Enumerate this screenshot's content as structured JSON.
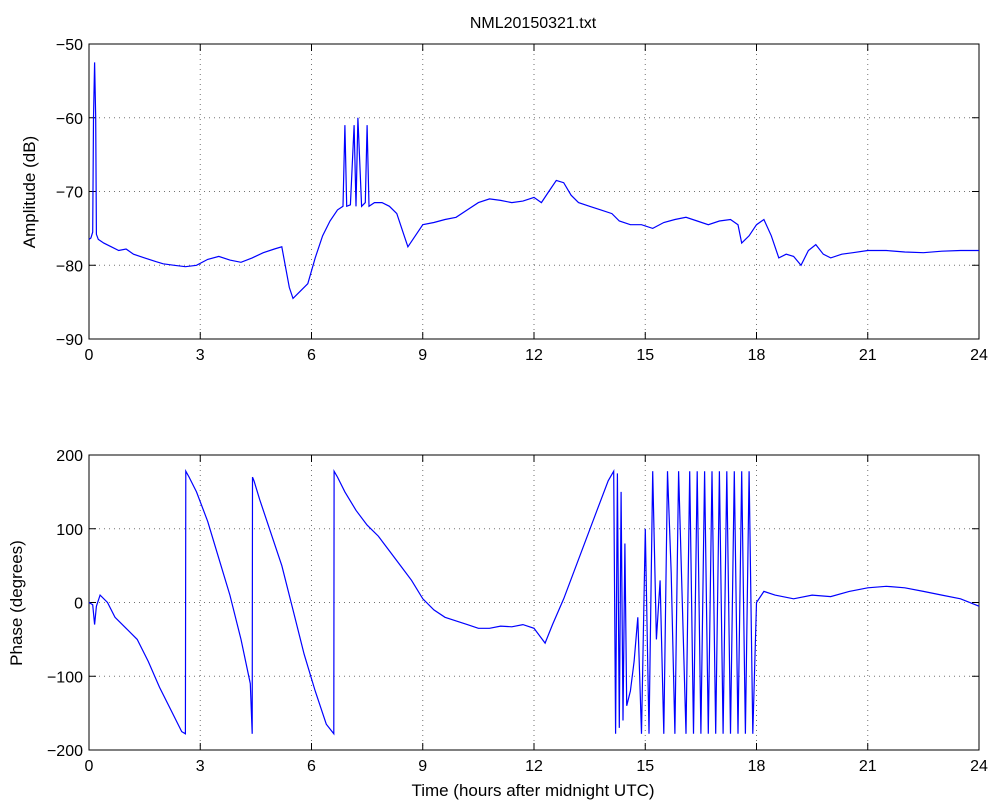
{
  "figure_title": "NML20150321.txt",
  "chart_data": [
    {
      "type": "line",
      "name": "amplitude",
      "xlabel": "",
      "ylabel": "Amplitude (dB)",
      "xlim": [
        0,
        24
      ],
      "ylim": [
        -90,
        -50
      ],
      "xticks": [
        0,
        3,
        6,
        9,
        12,
        15,
        18,
        21,
        24
      ],
      "yticks": [
        -90,
        -80,
        -70,
        -60,
        -50
      ],
      "xtick_labels": [
        "0",
        "3",
        "6",
        "9",
        "12",
        "15",
        "18",
        "21",
        "24"
      ],
      "ytick_labels": [
        "−90",
        "−80",
        "−70",
        "−60",
        "−50"
      ],
      "grid": true,
      "line_color": "#0000ff",
      "x": [
        0,
        0.05,
        0.1,
        0.12,
        0.15,
        0.18,
        0.2,
        0.25,
        0.4,
        0.6,
        0.8,
        1.0,
        1.2,
        1.5,
        1.8,
        2.0,
        2.3,
        2.6,
        2.9,
        3.2,
        3.5,
        3.8,
        4.1,
        4.4,
        4.7,
        5.0,
        5.2,
        5.4,
        5.5,
        5.7,
        5.9,
        6.1,
        6.3,
        6.5,
        6.7,
        6.85,
        6.9,
        6.95,
        7.05,
        7.15,
        7.2,
        7.25,
        7.35,
        7.45,
        7.5,
        7.55,
        7.7,
        7.9,
        8.1,
        8.3,
        8.5,
        8.6,
        8.8,
        9.0,
        9.3,
        9.6,
        9.9,
        10.2,
        10.5,
        10.8,
        11.1,
        11.4,
        11.7,
        12.0,
        12.2,
        12.4,
        12.6,
        12.8,
        13.0,
        13.2,
        13.5,
        13.8,
        14.1,
        14.3,
        14.6,
        14.9,
        15.2,
        15.5,
        15.8,
        16.1,
        16.4,
        16.7,
        17.0,
        17.3,
        17.5,
        17.6,
        17.8,
        18.0,
        18.2,
        18.4,
        18.6,
        18.8,
        19.0,
        19.2,
        19.4,
        19.6,
        19.8,
        20.0,
        20.3,
        20.6,
        21.0,
        21.5,
        22.0,
        22.5,
        23.0,
        23.5,
        24.0
      ],
      "y": [
        -76.5,
        -76.3,
        -75.5,
        -60,
        -52.5,
        -60,
        -75.8,
        -76.5,
        -77,
        -77.5,
        -78,
        -77.8,
        -78.5,
        -79,
        -79.5,
        -79.8,
        -80,
        -80.2,
        -80,
        -79.2,
        -78.8,
        -79.3,
        -79.6,
        -79,
        -78.3,
        -77.8,
        -77.5,
        -83,
        -84.5,
        -83.5,
        -82.5,
        -79,
        -76,
        -74,
        -72.5,
        -72,
        -61,
        -72,
        -71.8,
        -61,
        -72,
        -60,
        -72,
        -71.5,
        -61,
        -72,
        -71.5,
        -71.5,
        -72,
        -73,
        -76,
        -77.5,
        -76,
        -74.5,
        -74.2,
        -73.8,
        -73.5,
        -72.5,
        -71.5,
        -71,
        -71.2,
        -71.5,
        -71.3,
        -70.8,
        -71.5,
        -70,
        -68.5,
        -68.8,
        -70.5,
        -71.5,
        -72,
        -72.5,
        -73,
        -74,
        -74.5,
        -74.5,
        -75,
        -74.2,
        -73.8,
        -73.5,
        -74,
        -74.5,
        -74,
        -73.8,
        -74.5,
        -77,
        -76,
        -74.5,
        -73.8,
        -76,
        -79,
        -78.5,
        -78.8,
        -80,
        -78,
        -77.2,
        -78.5,
        -79,
        -78.5,
        -78.3,
        -78,
        -78,
        -78.2,
        -78.3,
        -78.1,
        -78,
        -78
      ]
    },
    {
      "type": "line",
      "name": "phase",
      "xlabel": "Time (hours after midnight UTC)",
      "ylabel": "Phase (degrees)",
      "xlim": [
        0,
        24
      ],
      "ylim": [
        -200,
        200
      ],
      "xticks": [
        0,
        3,
        6,
        9,
        12,
        15,
        18,
        21,
        24
      ],
      "yticks": [
        -200,
        -100,
        0,
        100,
        200
      ],
      "xtick_labels": [
        "0",
        "3",
        "6",
        "9",
        "12",
        "15",
        "18",
        "21",
        "24"
      ],
      "ytick_labels": [
        "−200",
        "−100",
        "0",
        "100",
        "200"
      ],
      "grid": true,
      "line_color": "#0000ff",
      "x": [
        0,
        0.1,
        0.15,
        0.2,
        0.3,
        0.5,
        0.7,
        1.0,
        1.3,
        1.6,
        1.9,
        2.2,
        2.5,
        2.6,
        2.61,
        2.7,
        2.9,
        3.2,
        3.5,
        3.8,
        4.1,
        4.35,
        4.4,
        4.41,
        4.45,
        4.6,
        4.9,
        5.2,
        5.5,
        5.8,
        6.1,
        6.4,
        6.6,
        6.61,
        6.7,
        6.9,
        7.2,
        7.5,
        7.8,
        8.1,
        8.4,
        8.7,
        9.0,
        9.3,
        9.6,
        9.9,
        10.2,
        10.5,
        10.8,
        11.1,
        11.4,
        11.7,
        12.0,
        12.3,
        12.5,
        12.8,
        13.1,
        13.4,
        13.7,
        14.0,
        14.15,
        14.2,
        14.25,
        14.3,
        14.35,
        14.4,
        14.45,
        14.5,
        14.6,
        14.7,
        14.8,
        14.9,
        15.0,
        15.1,
        15.2,
        15.3,
        15.4,
        15.5,
        15.6,
        15.7,
        15.8,
        15.9,
        16.0,
        16.1,
        16.2,
        16.3,
        16.4,
        16.5,
        16.6,
        16.7,
        16.8,
        16.9,
        17.0,
        17.1,
        17.2,
        17.3,
        17.4,
        17.5,
        17.6,
        17.7,
        17.8,
        17.9,
        18.0,
        18.2,
        18.5,
        19.0,
        19.5,
        20.0,
        20.5,
        21.0,
        21.5,
        22.0,
        22.5,
        23.0,
        23.5,
        24.0
      ],
      "y": [
        0,
        -3,
        -30,
        -5,
        10,
        0,
        -20,
        -35,
        -50,
        -80,
        -115,
        -145,
        -175,
        -178,
        178,
        170,
        150,
        110,
        60,
        10,
        -50,
        -110,
        -178,
        170,
        165,
        140,
        95,
        50,
        -10,
        -70,
        -120,
        -165,
        -178,
        178,
        170,
        150,
        125,
        105,
        90,
        70,
        50,
        30,
        5,
        -10,
        -20,
        -25,
        -30,
        -35,
        -35,
        -32,
        -33,
        -30,
        -35,
        -55,
        -30,
        5,
        45,
        85,
        125,
        165,
        178,
        -178,
        175,
        -170,
        150,
        -160,
        80,
        -140,
        -120,
        -80,
        -20,
        -178,
        100,
        -178,
        178,
        -50,
        30,
        -178,
        178,
        40,
        -178,
        178,
        0,
        -178,
        178,
        -178,
        178,
        -178,
        178,
        -178,
        178,
        -178,
        178,
        -178,
        178,
        -178,
        178,
        -178,
        178,
        -178,
        178,
        -178,
        0,
        15,
        10,
        5,
        10,
        8,
        15,
        20,
        22,
        20,
        15,
        10,
        5,
        -5
      ]
    }
  ]
}
